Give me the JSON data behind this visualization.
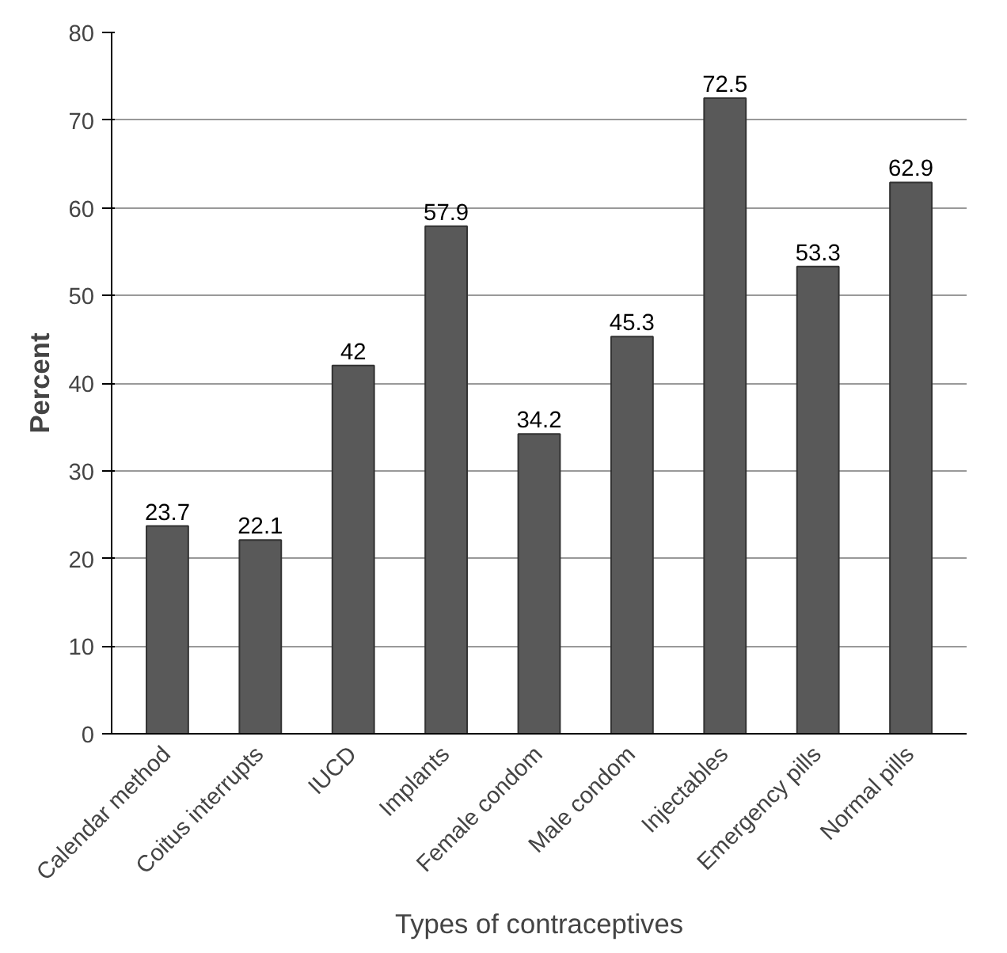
{
  "chart_data": {
    "type": "bar",
    "xlabel": "Types of contraceptives",
    "ylabel": "Percent",
    "categories": [
      "Calendar method",
      "Coitus interrupts",
      "IUCD",
      "Implants",
      "Female condom",
      "Male condom",
      "Injectables",
      "Emergency pills",
      "Normal pills"
    ],
    "values": [
      23.7,
      22.1,
      42,
      57.9,
      34.2,
      45.3,
      72.5,
      53.3,
      62.9
    ],
    "color": "#595959",
    "ylim": [
      0,
      80
    ],
    "yticks": [
      0,
      10,
      20,
      30,
      40,
      50,
      60,
      70,
      80
    ],
    "grid": "y",
    "data_labels": true
  }
}
